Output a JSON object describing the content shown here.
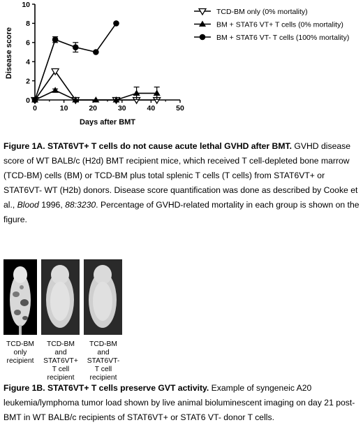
{
  "chart_data": {
    "type": "line",
    "xlabel": "Days after BMT",
    "ylabel": "Disease score",
    "xlim": [
      0,
      50
    ],
    "ylim": [
      0,
      10
    ],
    "xticks": [
      "0",
      "10",
      "20",
      "30",
      "40",
      "50"
    ],
    "yticks": [
      "0",
      "2",
      "4",
      "6",
      "8",
      "10"
    ],
    "legend_position": "top-right",
    "series": [
      {
        "name": "TCD-BM only (0% mortality)",
        "marker": "open-triangle-down",
        "color": "#000000",
        "points": [
          {
            "x": 0,
            "y": 0
          },
          {
            "x": 7,
            "y": 3
          },
          {
            "x": 14,
            "y": 0
          },
          {
            "x": 28,
            "y": 0
          },
          {
            "x": 35,
            "y": 0
          },
          {
            "x": 42,
            "y": 0
          }
        ]
      },
      {
        "name": "BM + STAT6 VT+ T cells (0% mortality)",
        "marker": "filled-triangle-up",
        "color": "#000000",
        "points": [
          {
            "x": 0,
            "y": 0
          },
          {
            "x": 7,
            "y": 1,
            "err": 0.15
          },
          {
            "x": 14,
            "y": 0
          },
          {
            "x": 21,
            "y": 0
          },
          {
            "x": 28,
            "y": 0
          },
          {
            "x": 35,
            "y": 0.7,
            "err": 0.65
          },
          {
            "x": 42,
            "y": 0.7,
            "err": 0.65
          }
        ]
      },
      {
        "name": "BM + STAT6 VT- T cells (100% mortality)",
        "marker": "filled-circle",
        "color": "#000000",
        "points": [
          {
            "x": 0,
            "y": 0
          },
          {
            "x": 7,
            "y": 6.3,
            "err": 0.3
          },
          {
            "x": 14,
            "y": 5.5,
            "err": 0.5
          },
          {
            "x": 21,
            "y": 5
          },
          {
            "x": 28,
            "y": 8
          }
        ]
      }
    ]
  },
  "figure_1a": {
    "title": "Figure 1A. STAT6VT+ T cells do not cause acute lethal GVHD after BMT.",
    "body_1": " GVHD disease score of WT BALB/c (H2d) BMT recipient mice, which received T cell-depleted bone marrow (TCD-BM) cells (BM) or TCD-BM plus total splenic T cells (T cells) from STAT6VT+ or STAT6VT- WT (H2b) donors. Disease score quantification was done as described by Cooke et al., ",
    "journal": "Blood",
    "body_2": " 1996, ",
    "citation": "88:3230",
    "body_3": ". Percentage of GVHD-related mortality in each group is shown on the figure."
  },
  "figure_1b": {
    "title": "Figure 1B. STAT6VT+ T cells preserve GVT activity.",
    "body": " Example of syngeneic A20 leukemia/lymphoma tumor load shown by live animal bioluminescent imaging on day 21 post-BMT in WT BALB/c recipients of STAT6VT+ or STAT6 VT- donor T cells.",
    "panels": [
      {
        "label_lines": [
          "TCD-BM",
          "only",
          "recipient"
        ]
      },
      {
        "label_lines": [
          "TCD-BM",
          "and",
          "STAT6VT+",
          "T cell",
          "recipient"
        ]
      },
      {
        "label_lines": [
          "TCD-BM",
          "and",
          "STAT6VT-",
          "T cell",
          "recipient"
        ]
      }
    ]
  }
}
